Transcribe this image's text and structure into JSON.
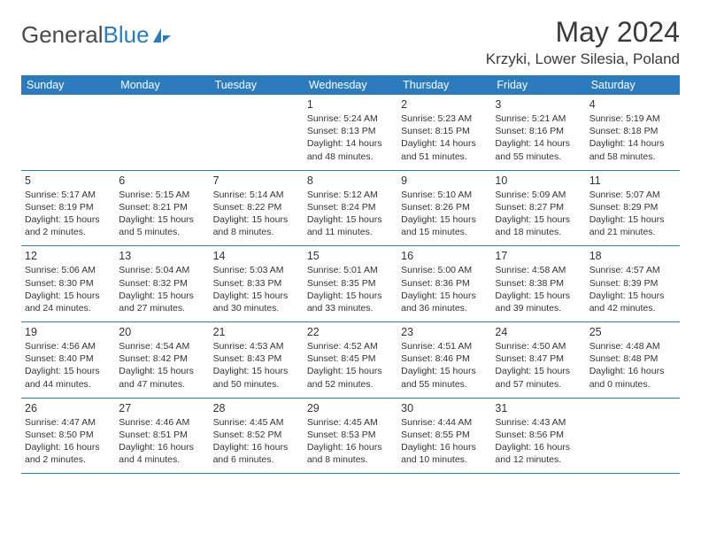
{
  "logo": {
    "text1": "General",
    "text2": "Blue"
  },
  "title": "May 2024",
  "location": "Krzyki, Lower Silesia, Poland",
  "colors": {
    "brand_blue": "#2b7bbd",
    "header_text": "#ffffff",
    "body_text": "#333333",
    "title_text": "#3a3a3a",
    "bg": "#ffffff"
  },
  "day_headers": [
    "Sunday",
    "Monday",
    "Tuesday",
    "Wednesday",
    "Thursday",
    "Friday",
    "Saturday"
  ],
  "weeks": [
    [
      {
        "day": "",
        "sunrise": "",
        "sunset": "",
        "dl1": "",
        "dl2": ""
      },
      {
        "day": "",
        "sunrise": "",
        "sunset": "",
        "dl1": "",
        "dl2": ""
      },
      {
        "day": "",
        "sunrise": "",
        "sunset": "",
        "dl1": "",
        "dl2": ""
      },
      {
        "day": "1",
        "sunrise": "Sunrise: 5:24 AM",
        "sunset": "Sunset: 8:13 PM",
        "dl1": "Daylight: 14 hours",
        "dl2": "and 48 minutes."
      },
      {
        "day": "2",
        "sunrise": "Sunrise: 5:23 AM",
        "sunset": "Sunset: 8:15 PM",
        "dl1": "Daylight: 14 hours",
        "dl2": "and 51 minutes."
      },
      {
        "day": "3",
        "sunrise": "Sunrise: 5:21 AM",
        "sunset": "Sunset: 8:16 PM",
        "dl1": "Daylight: 14 hours",
        "dl2": "and 55 minutes."
      },
      {
        "day": "4",
        "sunrise": "Sunrise: 5:19 AM",
        "sunset": "Sunset: 8:18 PM",
        "dl1": "Daylight: 14 hours",
        "dl2": "and 58 minutes."
      }
    ],
    [
      {
        "day": "5",
        "sunrise": "Sunrise: 5:17 AM",
        "sunset": "Sunset: 8:19 PM",
        "dl1": "Daylight: 15 hours",
        "dl2": "and 2 minutes."
      },
      {
        "day": "6",
        "sunrise": "Sunrise: 5:15 AM",
        "sunset": "Sunset: 8:21 PM",
        "dl1": "Daylight: 15 hours",
        "dl2": "and 5 minutes."
      },
      {
        "day": "7",
        "sunrise": "Sunrise: 5:14 AM",
        "sunset": "Sunset: 8:22 PM",
        "dl1": "Daylight: 15 hours",
        "dl2": "and 8 minutes."
      },
      {
        "day": "8",
        "sunrise": "Sunrise: 5:12 AM",
        "sunset": "Sunset: 8:24 PM",
        "dl1": "Daylight: 15 hours",
        "dl2": "and 11 minutes."
      },
      {
        "day": "9",
        "sunrise": "Sunrise: 5:10 AM",
        "sunset": "Sunset: 8:26 PM",
        "dl1": "Daylight: 15 hours",
        "dl2": "and 15 minutes."
      },
      {
        "day": "10",
        "sunrise": "Sunrise: 5:09 AM",
        "sunset": "Sunset: 8:27 PM",
        "dl1": "Daylight: 15 hours",
        "dl2": "and 18 minutes."
      },
      {
        "day": "11",
        "sunrise": "Sunrise: 5:07 AM",
        "sunset": "Sunset: 8:29 PM",
        "dl1": "Daylight: 15 hours",
        "dl2": "and 21 minutes."
      }
    ],
    [
      {
        "day": "12",
        "sunrise": "Sunrise: 5:06 AM",
        "sunset": "Sunset: 8:30 PM",
        "dl1": "Daylight: 15 hours",
        "dl2": "and 24 minutes."
      },
      {
        "day": "13",
        "sunrise": "Sunrise: 5:04 AM",
        "sunset": "Sunset: 8:32 PM",
        "dl1": "Daylight: 15 hours",
        "dl2": "and 27 minutes."
      },
      {
        "day": "14",
        "sunrise": "Sunrise: 5:03 AM",
        "sunset": "Sunset: 8:33 PM",
        "dl1": "Daylight: 15 hours",
        "dl2": "and 30 minutes."
      },
      {
        "day": "15",
        "sunrise": "Sunrise: 5:01 AM",
        "sunset": "Sunset: 8:35 PM",
        "dl1": "Daylight: 15 hours",
        "dl2": "and 33 minutes."
      },
      {
        "day": "16",
        "sunrise": "Sunrise: 5:00 AM",
        "sunset": "Sunset: 8:36 PM",
        "dl1": "Daylight: 15 hours",
        "dl2": "and 36 minutes."
      },
      {
        "day": "17",
        "sunrise": "Sunrise: 4:58 AM",
        "sunset": "Sunset: 8:38 PM",
        "dl1": "Daylight: 15 hours",
        "dl2": "and 39 minutes."
      },
      {
        "day": "18",
        "sunrise": "Sunrise: 4:57 AM",
        "sunset": "Sunset: 8:39 PM",
        "dl1": "Daylight: 15 hours",
        "dl2": "and 42 minutes."
      }
    ],
    [
      {
        "day": "19",
        "sunrise": "Sunrise: 4:56 AM",
        "sunset": "Sunset: 8:40 PM",
        "dl1": "Daylight: 15 hours",
        "dl2": "and 44 minutes."
      },
      {
        "day": "20",
        "sunrise": "Sunrise: 4:54 AM",
        "sunset": "Sunset: 8:42 PM",
        "dl1": "Daylight: 15 hours",
        "dl2": "and 47 minutes."
      },
      {
        "day": "21",
        "sunrise": "Sunrise: 4:53 AM",
        "sunset": "Sunset: 8:43 PM",
        "dl1": "Daylight: 15 hours",
        "dl2": "and 50 minutes."
      },
      {
        "day": "22",
        "sunrise": "Sunrise: 4:52 AM",
        "sunset": "Sunset: 8:45 PM",
        "dl1": "Daylight: 15 hours",
        "dl2": "and 52 minutes."
      },
      {
        "day": "23",
        "sunrise": "Sunrise: 4:51 AM",
        "sunset": "Sunset: 8:46 PM",
        "dl1": "Daylight: 15 hours",
        "dl2": "and 55 minutes."
      },
      {
        "day": "24",
        "sunrise": "Sunrise: 4:50 AM",
        "sunset": "Sunset: 8:47 PM",
        "dl1": "Daylight: 15 hours",
        "dl2": "and 57 minutes."
      },
      {
        "day": "25",
        "sunrise": "Sunrise: 4:48 AM",
        "sunset": "Sunset: 8:48 PM",
        "dl1": "Daylight: 16 hours",
        "dl2": "and 0 minutes."
      }
    ],
    [
      {
        "day": "26",
        "sunrise": "Sunrise: 4:47 AM",
        "sunset": "Sunset: 8:50 PM",
        "dl1": "Daylight: 16 hours",
        "dl2": "and 2 minutes."
      },
      {
        "day": "27",
        "sunrise": "Sunrise: 4:46 AM",
        "sunset": "Sunset: 8:51 PM",
        "dl1": "Daylight: 16 hours",
        "dl2": "and 4 minutes."
      },
      {
        "day": "28",
        "sunrise": "Sunrise: 4:45 AM",
        "sunset": "Sunset: 8:52 PM",
        "dl1": "Daylight: 16 hours",
        "dl2": "and 6 minutes."
      },
      {
        "day": "29",
        "sunrise": "Sunrise: 4:45 AM",
        "sunset": "Sunset: 8:53 PM",
        "dl1": "Daylight: 16 hours",
        "dl2": "and 8 minutes."
      },
      {
        "day": "30",
        "sunrise": "Sunrise: 4:44 AM",
        "sunset": "Sunset: 8:55 PM",
        "dl1": "Daylight: 16 hours",
        "dl2": "and 10 minutes."
      },
      {
        "day": "31",
        "sunrise": "Sunrise: 4:43 AM",
        "sunset": "Sunset: 8:56 PM",
        "dl1": "Daylight: 16 hours",
        "dl2": "and 12 minutes."
      },
      {
        "day": "",
        "sunrise": "",
        "sunset": "",
        "dl1": "",
        "dl2": ""
      }
    ]
  ]
}
